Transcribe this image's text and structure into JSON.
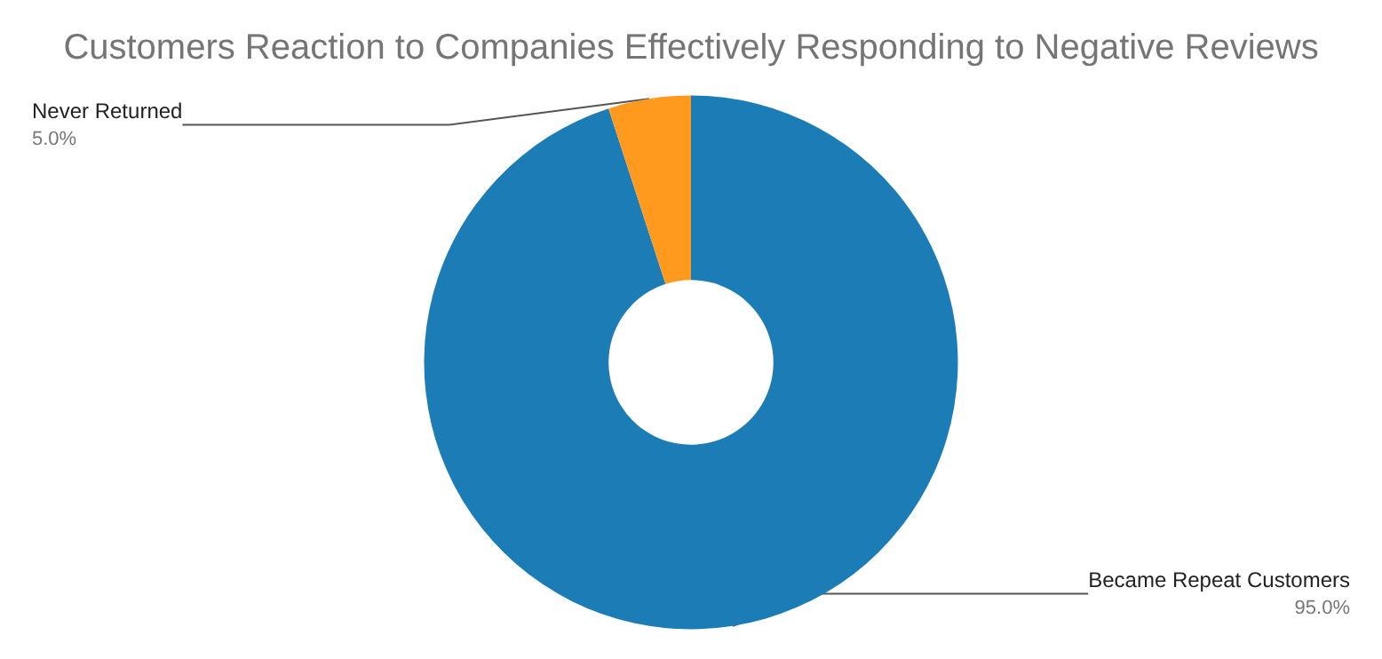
{
  "chart_data": {
    "type": "donut",
    "title": "Customers Reaction to Companies Effectively Responding to Negative Reviews",
    "categories": [
      "Became Repeat Customers",
      "Never Returned"
    ],
    "values": [
      95,
      5
    ],
    "value_labels": [
      "95.0%",
      "5.0%"
    ],
    "colors": [
      "#1c7cb5",
      "#ff9a1f"
    ],
    "legend": false
  }
}
